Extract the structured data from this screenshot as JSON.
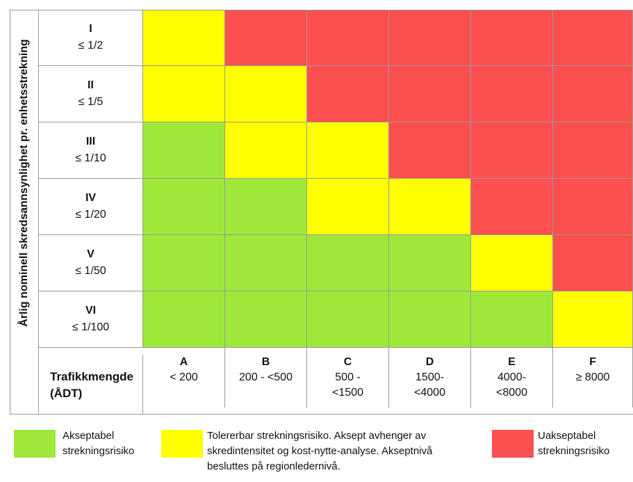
{
  "y_axis_label": "Årlig nominell skredsannsynlighet pr. enhetsstrekning",
  "x_axis_label": "Trafikkmengde (ÅDT)",
  "colors": {
    "green": "#9ee83a",
    "yellow": "#ffff00",
    "red": "#fc4f4f"
  },
  "rows": [
    {
      "roman": "I",
      "threshold": "≤ 1/2"
    },
    {
      "roman": "II",
      "threshold": "≤ 1/5"
    },
    {
      "roman": "III",
      "threshold": "≤ 1/10"
    },
    {
      "roman": "IV",
      "threshold": "≤ 1/20"
    },
    {
      "roman": "V",
      "threshold": "≤ 1/50"
    },
    {
      "roman": "VI",
      "threshold": "≤ 1/100"
    }
  ],
  "columns": [
    {
      "letter": "A",
      "range": "< 200"
    },
    {
      "letter": "B",
      "range": "200 - <500"
    },
    {
      "letter": "C",
      "range": "500 -\n<1500"
    },
    {
      "letter": "D",
      "range": "1500-\n<4000"
    },
    {
      "letter": "E",
      "range": "4000-\n<8000"
    },
    {
      "letter": "F",
      "range": "≥ 8000"
    }
  ],
  "matrix": [
    [
      "yellow",
      "red",
      "red",
      "red",
      "red",
      "red"
    ],
    [
      "yellow",
      "yellow",
      "red",
      "red",
      "red",
      "red"
    ],
    [
      "green",
      "yellow",
      "yellow",
      "red",
      "red",
      "red"
    ],
    [
      "green",
      "green",
      "yellow",
      "yellow",
      "red",
      "red"
    ],
    [
      "green",
      "green",
      "green",
      "green",
      "yellow",
      "red"
    ],
    [
      "green",
      "green",
      "green",
      "green",
      "green",
      "yellow"
    ]
  ],
  "legend": {
    "green": "Akseptabel\nstrekningsrisiko",
    "yellow": "Tolererbar strekningsrisiko. Aksept avhenger av\nskredintensitet og kost-nytte-analyse. Akseptnivå\nbesluttes på regionledernivå.",
    "red": "Uakseptabel\nstrekningsrisiko"
  }
}
